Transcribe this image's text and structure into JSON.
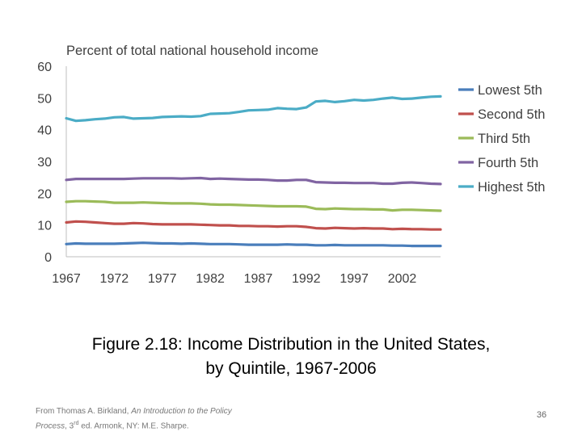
{
  "chart_data": {
    "type": "line",
    "title": "Percent of total national household income",
    "xlabel": "",
    "ylabel": "",
    "ylim": [
      0,
      60
    ],
    "yticks": [
      0,
      10,
      20,
      30,
      40,
      50,
      60
    ],
    "xlim": [
      1967,
      2006
    ],
    "xticks": [
      1967,
      1972,
      1977,
      1982,
      1987,
      1992,
      1997,
      2002
    ],
    "grid": false,
    "legend_position": "right",
    "x": [
      1967,
      1968,
      1969,
      1970,
      1971,
      1972,
      1973,
      1974,
      1975,
      1976,
      1977,
      1978,
      1979,
      1980,
      1981,
      1982,
      1983,
      1984,
      1985,
      1986,
      1987,
      1988,
      1989,
      1990,
      1991,
      1992,
      1993,
      1994,
      1995,
      1996,
      1997,
      1998,
      1999,
      2000,
      2001,
      2002,
      2003,
      2004,
      2005,
      2006
    ],
    "series": [
      {
        "name": "Lowest  5th",
        "color": "#4a7ebb",
        "values": [
          4.0,
          4.2,
          4.1,
          4.1,
          4.1,
          4.1,
          4.2,
          4.3,
          4.4,
          4.3,
          4.2,
          4.2,
          4.1,
          4.2,
          4.1,
          4.0,
          4.0,
          4.0,
          3.9,
          3.8,
          3.8,
          3.8,
          3.8,
          3.9,
          3.8,
          3.8,
          3.6,
          3.6,
          3.7,
          3.6,
          3.6,
          3.6,
          3.6,
          3.6,
          3.5,
          3.5,
          3.4,
          3.4,
          3.4,
          3.4
        ]
      },
      {
        "name": "Second  5th",
        "color": "#c0504d",
        "values": [
          10.8,
          11.1,
          11.0,
          10.8,
          10.6,
          10.4,
          10.4,
          10.6,
          10.5,
          10.3,
          10.2,
          10.2,
          10.2,
          10.2,
          10.1,
          10.0,
          9.9,
          9.9,
          9.7,
          9.7,
          9.6,
          9.6,
          9.5,
          9.6,
          9.6,
          9.4,
          9.0,
          8.9,
          9.1,
          9.0,
          8.9,
          9.0,
          8.9,
          8.9,
          8.7,
          8.8,
          8.7,
          8.7,
          8.6,
          8.6
        ]
      },
      {
        "name": "Third 5th",
        "color": "#9bbb59",
        "values": [
          17.3,
          17.5,
          17.5,
          17.4,
          17.3,
          17.0,
          17.0,
          17.0,
          17.1,
          17.0,
          16.9,
          16.8,
          16.8,
          16.8,
          16.7,
          16.5,
          16.4,
          16.4,
          16.3,
          16.2,
          16.1,
          16.0,
          15.9,
          15.9,
          15.9,
          15.8,
          15.1,
          15.0,
          15.2,
          15.1,
          15.0,
          15.0,
          14.9,
          14.9,
          14.6,
          14.8,
          14.8,
          14.7,
          14.6,
          14.5
        ]
      },
      {
        "name": "Fourth 5th",
        "color": "#8064a2",
        "values": [
          24.2,
          24.5,
          24.5,
          24.5,
          24.5,
          24.5,
          24.5,
          24.6,
          24.7,
          24.7,
          24.7,
          24.7,
          24.6,
          24.7,
          24.8,
          24.5,
          24.6,
          24.5,
          24.4,
          24.3,
          24.3,
          24.2,
          24.0,
          24.0,
          24.2,
          24.2,
          23.5,
          23.4,
          23.3,
          23.3,
          23.2,
          23.2,
          23.2,
          23.0,
          23.0,
          23.3,
          23.4,
          23.2,
          23.0,
          22.9
        ]
      },
      {
        "name": "Highest 5th",
        "color": "#4bacc6",
        "values": [
          43.6,
          42.8,
          43.0,
          43.3,
          43.5,
          43.9,
          44.0,
          43.5,
          43.6,
          43.7,
          44.0,
          44.1,
          44.2,
          44.1,
          44.3,
          45.0,
          45.1,
          45.2,
          45.6,
          46.1,
          46.2,
          46.3,
          46.8,
          46.6,
          46.5,
          47.0,
          48.9,
          49.1,
          48.7,
          49.0,
          49.4,
          49.2,
          49.4,
          49.8,
          50.1,
          49.7,
          49.8,
          50.1,
          50.4,
          50.5
        ]
      }
    ]
  },
  "caption": {
    "line1": "Figure 2.18: Income Distribution in the United States,",
    "line2": "by Quintile, 1967-2006"
  },
  "source": {
    "prefix": "From Thomas A. Birkland, ",
    "book_title_a": "An Introduction to the Policy",
    "book_title_b": "Process",
    "edition_num": ", 3",
    "edition_sup": "rd",
    "suffix": " ed. Armonk, NY: M.E. Sharpe."
  },
  "page_number": "36"
}
